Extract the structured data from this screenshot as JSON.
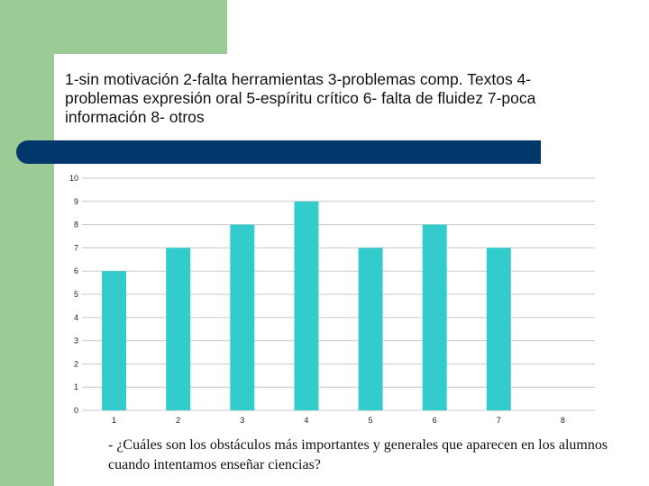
{
  "slide": {
    "title": "1-sin motivación 2-falta herramientas 3-problemas comp. Textos 4-problemas expresión oral 5-espíritu crítico 6- falta de fluidez 7-poca información 8- otros",
    "caption": "- ¿Cuáles son los obstáculos más importantes y generales que aparecen en los alumnos cuando intentamos enseñar ciencias?"
  },
  "colors": {
    "bar": "#33cccc",
    "grid": "#c8c8c8",
    "band": "#00386b",
    "green": "#9ccc95"
  },
  "chart_data": {
    "type": "bar",
    "title": "",
    "xlabel": "",
    "ylabel": "",
    "categories": [
      "1",
      "2",
      "3",
      "4",
      "5",
      "6",
      "7",
      "8"
    ],
    "values": [
      6,
      7,
      8,
      9,
      7,
      8,
      7,
      0
    ],
    "ylim": [
      0,
      10
    ],
    "yticks": [
      "0",
      "1",
      "2",
      "3",
      "4",
      "5",
      "6",
      "7",
      "8",
      "9",
      "10"
    ],
    "grid": true,
    "legend": "none"
  }
}
